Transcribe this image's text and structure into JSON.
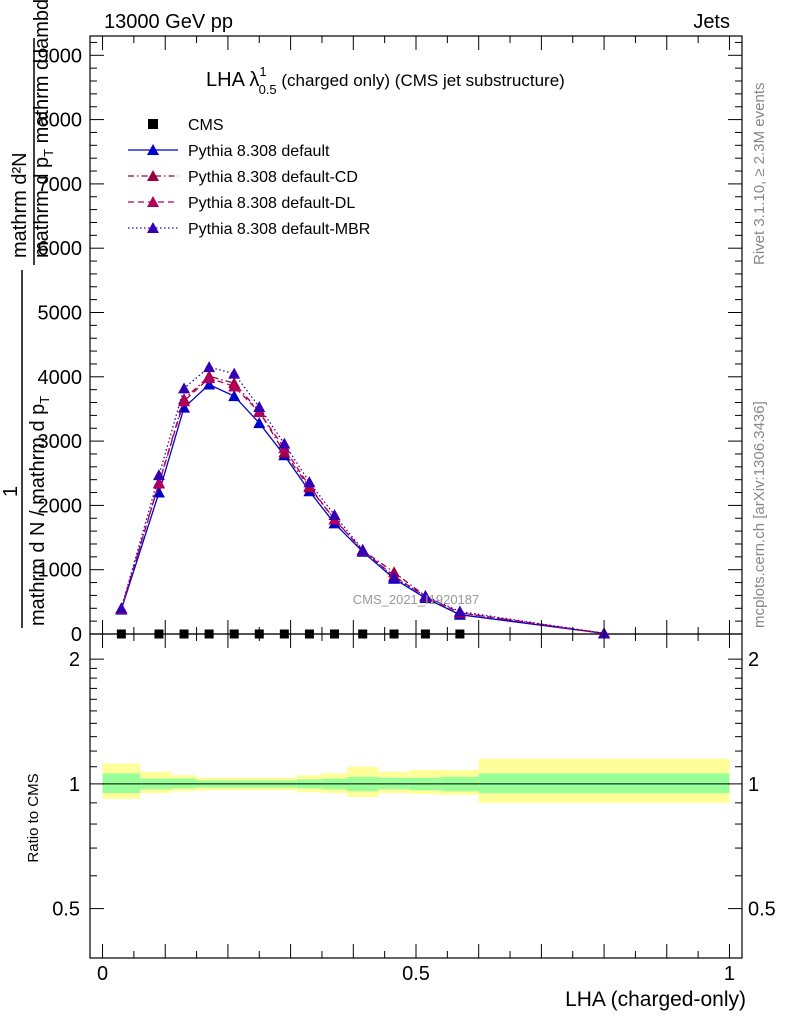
{
  "header": {
    "left": "13000 GeV pp",
    "right": "Jets"
  },
  "side_labels": {
    "rivet": "Rivet 3.1.10, ≥ 2.3M events",
    "mcplots": "mcplots.cern.ch [arXiv:1306.3436]"
  },
  "watermark": "CMS_2021_I1920187",
  "main_title": {
    "prefix": "LHA λ",
    "sup": "1",
    "sub": "0.5",
    "suffix": " (charged only) (CMS jet substructure)"
  },
  "y_label_main": {
    "numerator": "mathrm d²N",
    "denominator": "mathrm d p",
    "denominator_sub": "T",
    "denominator_rest": " mathrm d lambda",
    "prefactor_num": "1",
    "prefactor_den": "mathrm d N / mathrm d p",
    "prefactor_den_sub": "T"
  },
  "x_label": "LHA (charged-only)",
  "ratio_label": "Ratio to CMS",
  "colors": {
    "cms": "#000000",
    "default": "#0000cc",
    "cd": "#99003d",
    "dl": "#b3005a",
    "mbr": "#3300b3",
    "band_inner": "#99ff99",
    "band_outer": "#ffff99"
  },
  "legend": {
    "placement": "top-left",
    "entries": [
      {
        "name": "CMS",
        "style": "marker"
      },
      {
        "name": "Pythia 8.308 default",
        "style": "solid"
      },
      {
        "name": "Pythia 8.308 default-CD",
        "style": "dash-dot"
      },
      {
        "name": "Pythia 8.308 default-DL",
        "style": "dash"
      },
      {
        "name": "Pythia 8.308 default-MBR",
        "style": "dot"
      }
    ]
  },
  "chart_data": {
    "type": "line",
    "x": [
      0.03,
      0.09,
      0.13,
      0.17,
      0.21,
      0.25,
      0.29,
      0.33,
      0.37,
      0.415,
      0.465,
      0.515,
      0.57,
      0.8
    ],
    "cms": {
      "x": [
        0.03,
        0.09,
        0.13,
        0.17,
        0.21,
        0.25,
        0.29,
        0.33,
        0.37,
        0.415,
        0.465,
        0.515,
        0.57
      ],
      "values": [
        0,
        0,
        0,
        0,
        0,
        0,
        0,
        0,
        0,
        0,
        0,
        0,
        0
      ]
    },
    "series": [
      {
        "name": "Pythia 8.308 default",
        "values": [
          380,
          2200,
          3520,
          3880,
          3700,
          3280,
          2780,
          2220,
          1720,
          1280,
          860,
          560,
          300,
          10
        ]
      },
      {
        "name": "Pythia 8.308 default-CD",
        "values": [
          390,
          2350,
          3650,
          4010,
          3900,
          3460,
          2820,
          2280,
          1780,
          1300,
          960,
          590,
          330,
          10
        ]
      },
      {
        "name": "Pythia 8.308 default-DL",
        "values": [
          390,
          2340,
          3620,
          3980,
          3850,
          3450,
          2890,
          2300,
          1780,
          1300,
          900,
          580,
          330,
          10
        ]
      },
      {
        "name": "Pythia 8.308 default-MBR",
        "values": [
          400,
          2470,
          3820,
          4150,
          4050,
          3530,
          2960,
          2360,
          1850,
          1310,
          880,
          590,
          350,
          10
        ]
      }
    ],
    "main_y": {
      "ticks": [
        0,
        1000,
        2000,
        3000,
        4000,
        5000,
        6000,
        7000,
        8000,
        9000
      ],
      "ylim": [
        0,
        9300
      ]
    },
    "ratio": {
      "ylim": [
        0.38,
        2.3
      ],
      "ticks": [
        0.5,
        1,
        2
      ],
      "bins": [
        {
          "lo": 0.0,
          "hi": 0.06,
          "inner": [
            0.95,
            1.06
          ],
          "outer": [
            0.92,
            1.12
          ]
        },
        {
          "lo": 0.06,
          "hi": 0.11,
          "inner": [
            0.97,
            1.03
          ],
          "outer": [
            0.95,
            1.07
          ]
        },
        {
          "lo": 0.11,
          "hi": 0.15,
          "inner": [
            0.975,
            1.03
          ],
          "outer": [
            0.96,
            1.05
          ]
        },
        {
          "lo": 0.15,
          "hi": 0.19,
          "inner": [
            0.98,
            1.02
          ],
          "outer": [
            0.965,
            1.035
          ]
        },
        {
          "lo": 0.19,
          "hi": 0.23,
          "inner": [
            0.98,
            1.02
          ],
          "outer": [
            0.965,
            1.035
          ]
        },
        {
          "lo": 0.23,
          "hi": 0.27,
          "inner": [
            0.98,
            1.02
          ],
          "outer": [
            0.965,
            1.035
          ]
        },
        {
          "lo": 0.27,
          "hi": 0.31,
          "inner": [
            0.98,
            1.02
          ],
          "outer": [
            0.965,
            1.035
          ]
        },
        {
          "lo": 0.31,
          "hi": 0.35,
          "inner": [
            0.975,
            1.025
          ],
          "outer": [
            0.955,
            1.05
          ]
        },
        {
          "lo": 0.35,
          "hi": 0.39,
          "inner": [
            0.97,
            1.03
          ],
          "outer": [
            0.95,
            1.06
          ]
        },
        {
          "lo": 0.39,
          "hi": 0.44,
          "inner": [
            0.96,
            1.04
          ],
          "outer": [
            0.93,
            1.1
          ]
        },
        {
          "lo": 0.44,
          "hi": 0.49,
          "inner": [
            0.97,
            1.035
          ],
          "outer": [
            0.95,
            1.07
          ]
        },
        {
          "lo": 0.49,
          "hi": 0.54,
          "inner": [
            0.965,
            1.035
          ],
          "outer": [
            0.945,
            1.08
          ]
        },
        {
          "lo": 0.54,
          "hi": 0.6,
          "inner": [
            0.96,
            1.04
          ],
          "outer": [
            0.94,
            1.08
          ]
        },
        {
          "lo": 0.6,
          "hi": 1.0,
          "inner": [
            0.95,
            1.06
          ],
          "outer": [
            0.9,
            1.15
          ]
        }
      ]
    },
    "x_axis": {
      "xlim": [
        -0.02,
        1.02
      ],
      "tick_labels": [
        0,
        0.5,
        1
      ]
    }
  }
}
